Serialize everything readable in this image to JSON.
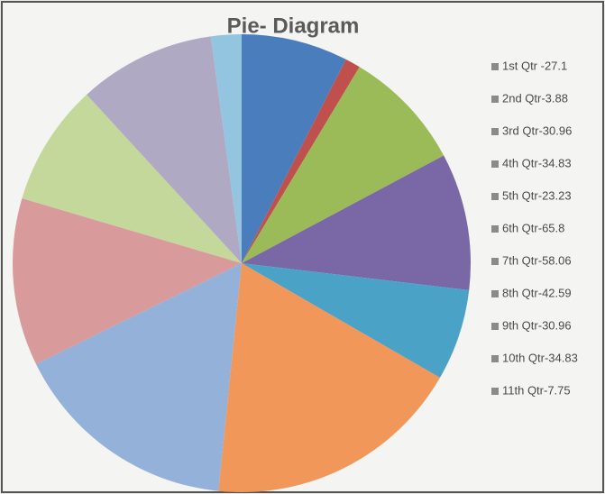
{
  "chart_data": {
    "type": "pie",
    "title": "Pie- Diagram",
    "categories": [
      "1st Qtr -27.1",
      "2nd Qtr-3.88",
      "3rd Qtr-30.96",
      "4th Qtr-34.83",
      "5th Qtr-23.23",
      "6th Qtr-65.8",
      "7th Qtr-58.06",
      "8th Qtr-42.59",
      "9th Qtr-30.96",
      "10th Qtr-34.83",
      "11th Qtr-7.75"
    ],
    "values": [
      27.1,
      3.88,
      30.96,
      34.83,
      23.23,
      65.8,
      58.06,
      42.59,
      30.96,
      34.83,
      7.75
    ],
    "colors": [
      "#4a7dbb",
      "#c0504d",
      "#9bbb59",
      "#7a68a6",
      "#4aa3c6",
      "#f1975a",
      "#93b1d9",
      "#d89a9a",
      "#c4d89b",
      "#b0a9c4",
      "#93c4e0"
    ],
    "legend": "right"
  }
}
